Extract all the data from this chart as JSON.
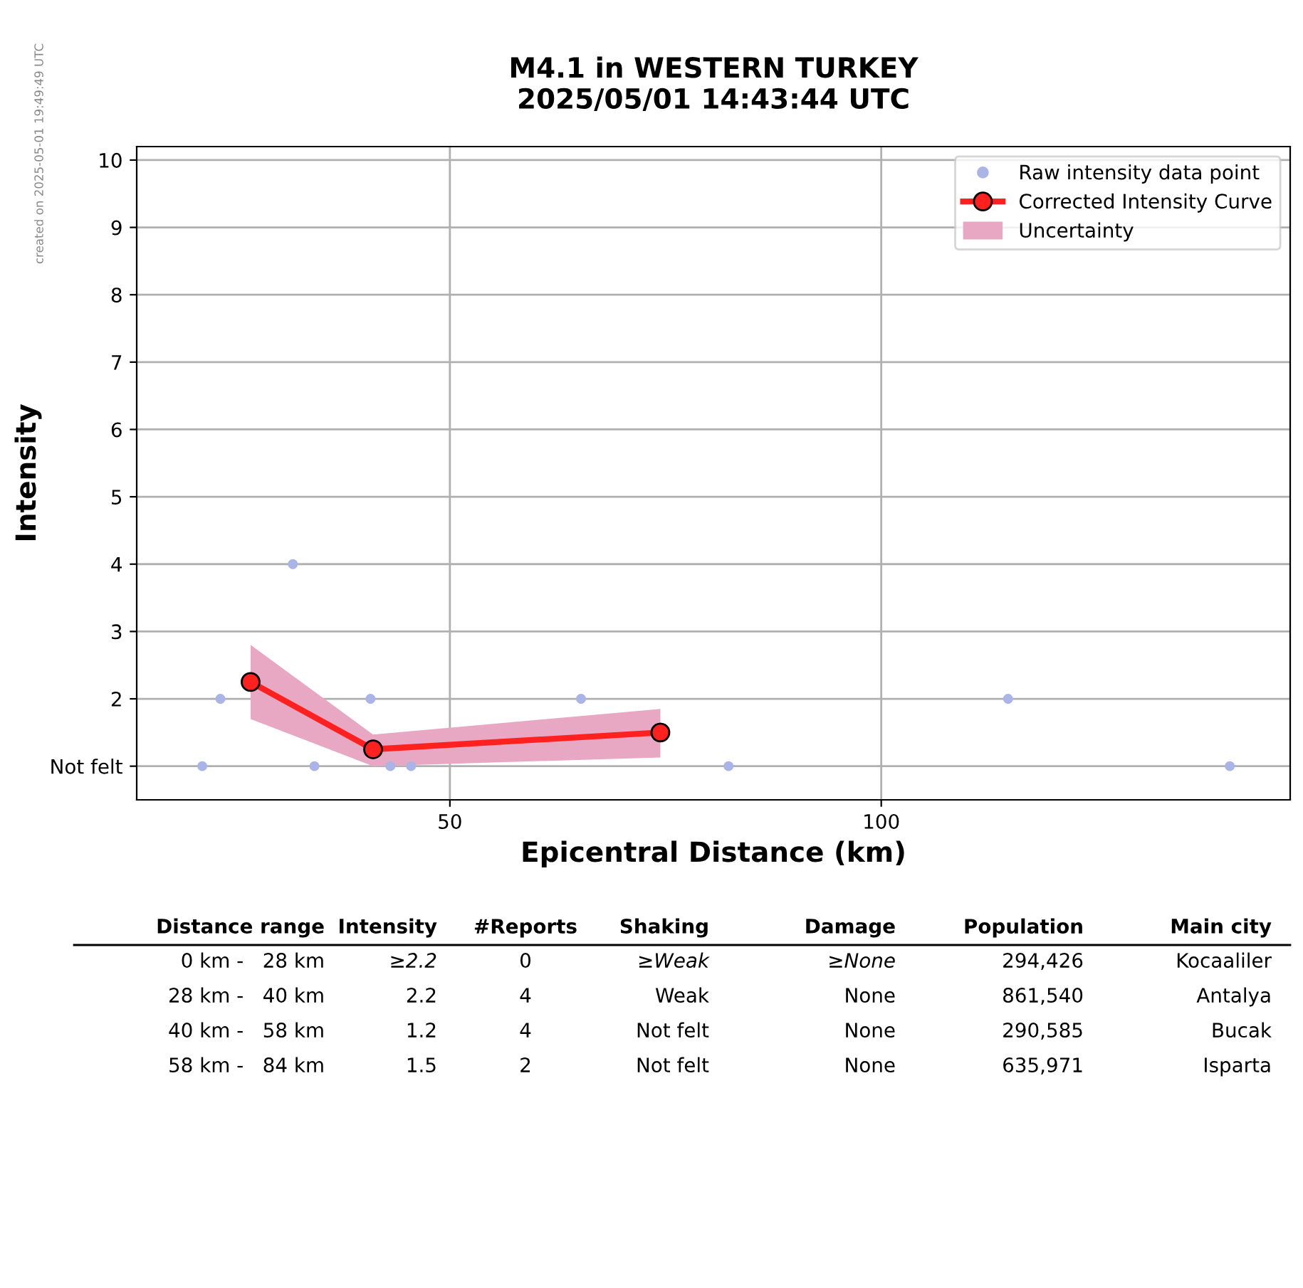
{
  "chart_data": {
    "type": "scatter",
    "title": "M4.1 in WESTERN TURKEY\n2025/05/01 14:43:44 UTC",
    "xlabel": "Epicentral Distance (km)",
    "ylabel": "Intensity",
    "xlim": [
      13.7,
      147.4
    ],
    "ylim": [
      0.5,
      10.2
    ],
    "xticks": [
      50,
      100
    ],
    "yticks": [
      {
        "value": 1,
        "label": "Not felt"
      },
      2,
      3,
      4,
      5,
      6,
      7,
      8,
      9,
      10
    ],
    "grid": true,
    "legend": "top right",
    "series": [
      {
        "name": "Raw intensity data point",
        "color": "#aab4e6",
        "marker": "circle",
        "x": [
          21.3,
          23.4,
          31.8,
          34.3,
          40.8,
          43.1,
          45.5,
          65.2,
          82.3,
          114.7,
          140.4
        ],
        "values": [
          1,
          2,
          4,
          1,
          2,
          1,
          1,
          2,
          1,
          2,
          1
        ]
      },
      {
        "type": "line",
        "name": "Corrected Intensity Curve",
        "color": "#ff2020",
        "marker": "circle",
        "line_style": "solid",
        "x": [
          26.9,
          41.1,
          74.4
        ],
        "values": [
          2.25,
          1.25,
          1.5
        ],
        "lower": [
          1.7,
          1.0,
          1.13
        ],
        "upper": [
          2.8,
          1.47,
          1.85
        ]
      }
    ],
    "annotations": [
      "Uncertainty",
      "created on 2025-05-01 19:49:49 UTC",
      "Distance range",
      "Intensity",
      "#Reports",
      "Shaking",
      "Damage",
      "Population",
      "Main city",
      "0 km -   28 km",
      "≥2.2",
      "0",
      "≥Weak",
      "≥None",
      "294,426",
      "Kocaaliler",
      "28 km -   40 km",
      "2.2",
      "4",
      "Weak",
      "None",
      "861,540",
      "Antalya",
      "40 km -   58 km",
      "1.2",
      "4",
      "Not felt",
      "None",
      "290,585",
      "Bucak",
      "58 km -   84 km",
      "1.5",
      "2",
      "Not felt",
      "None",
      "635,971",
      "Isparta"
    ]
  }
}
